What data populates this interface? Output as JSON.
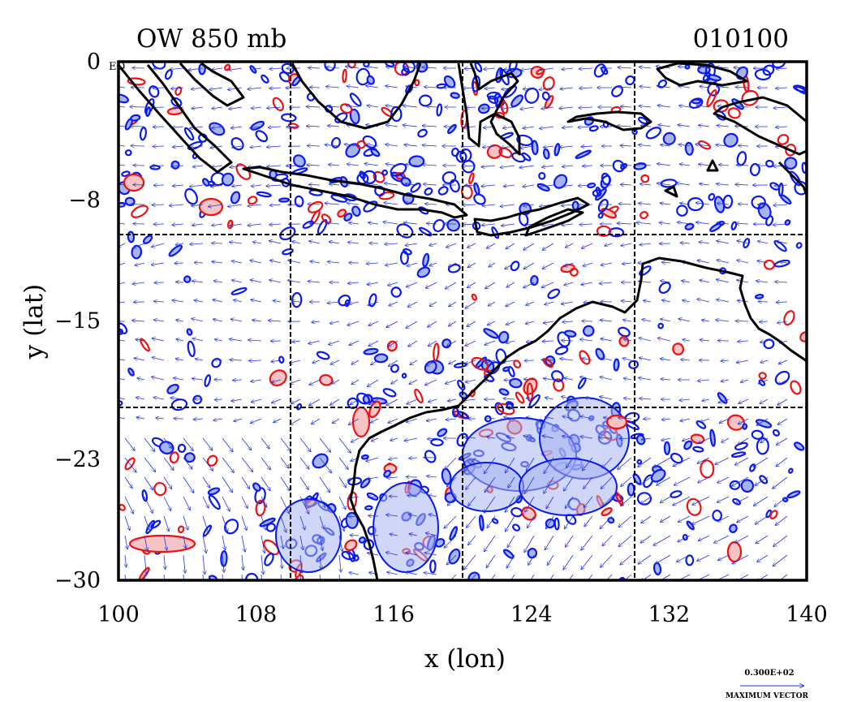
{
  "map": {
    "title_left": "OW 850 mb",
    "title_right": "010100",
    "equator_label": "EQ",
    "xlabel": "x (lon)",
    "ylabel": "y (lat)",
    "x_range": [
      100,
      140
    ],
    "y_range": [
      -30,
      0
    ],
    "x_ticks": [
      "100",
      "108",
      "116",
      "124",
      "132",
      "140"
    ],
    "y_ticks": [
      "0",
      "−8",
      "−15",
      "−23",
      "−30"
    ],
    "y_tick_values": [
      0,
      -8,
      -15,
      -23,
      -30
    ],
    "x_tick_values": [
      100,
      108,
      116,
      124,
      132,
      140
    ],
    "grid_lon": [
      110,
      120,
      130
    ],
    "grid_lat": [
      -10,
      -20
    ],
    "vector_legend_value": "0.300E+02",
    "vector_legend_label": "MAXIMUM VECTOR",
    "colors": {
      "frame": "#000000",
      "coast": "#000000",
      "vectors": "#2233dd",
      "contour_negative": "#0a1aee",
      "fill_negative": "#a8b4f0",
      "contour_positive": "#ee1111",
      "fill_positive": "#f6c4c4"
    }
  }
}
